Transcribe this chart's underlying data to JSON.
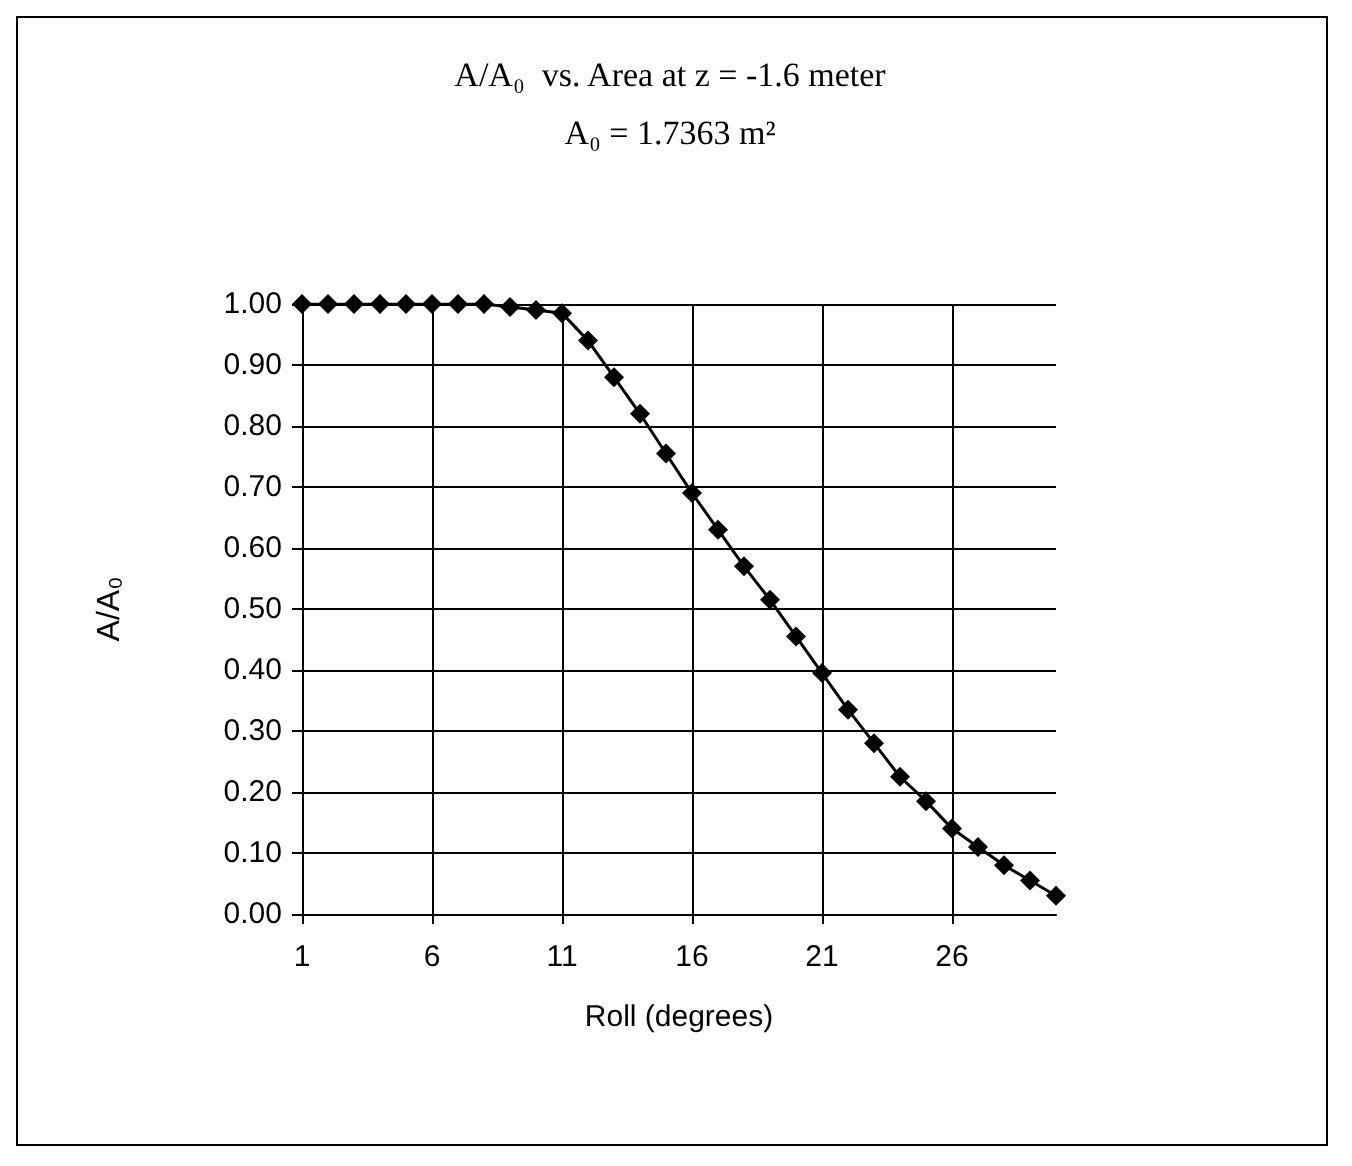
{
  "chart_data": {
    "type": "line",
    "title": "A/A₀  vs. Area at z = -1.6 meter",
    "subtitle": "A₀ = 1.7363 m²",
    "xlabel": "Roll (degrees)",
    "ylabel": "A/A₀",
    "x": [
      1,
      2,
      3,
      4,
      5,
      6,
      7,
      8,
      9,
      10,
      11,
      12,
      13,
      14,
      15,
      16,
      17,
      18,
      19,
      20,
      21,
      22,
      23,
      24,
      25,
      26,
      27,
      28,
      29,
      30
    ],
    "series": [
      {
        "color": "#000000",
        "values": [
          1.0,
          1.0,
          1.0,
          1.0,
          1.0,
          1.0,
          1.0,
          1.0,
          0.995,
          0.99,
          0.985,
          0.94,
          0.88,
          0.82,
          0.755,
          0.69,
          0.63,
          0.57,
          0.515,
          0.455,
          0.395,
          0.335,
          0.28,
          0.225,
          0.185,
          0.14,
          0.11,
          0.08,
          0.055,
          0.03
        ]
      }
    ],
    "xlim": [
      1,
      30
    ],
    "xticks": [
      1,
      6,
      11,
      16,
      21,
      26
    ],
    "ylim": [
      0,
      1
    ],
    "yticks": [
      {
        "value": 0,
        "label": "0.00"
      },
      {
        "value": 0.1,
        "label": "0.10"
      },
      {
        "value": 0.2,
        "label": "0.20"
      },
      {
        "value": 0.3,
        "label": "0.30"
      },
      {
        "value": 0.4,
        "label": "0.40"
      },
      {
        "value": 0.5,
        "label": "0.50"
      },
      {
        "value": 0.6,
        "label": "0.60"
      },
      {
        "value": 0.7,
        "label": "0.70"
      },
      {
        "value": 0.8,
        "label": "0.80"
      },
      {
        "value": 0.9,
        "label": "0.90"
      },
      {
        "value": 1,
        "label": "1.00"
      }
    ],
    "grid": true,
    "marker": "diamond",
    "line_style": "solid"
  }
}
